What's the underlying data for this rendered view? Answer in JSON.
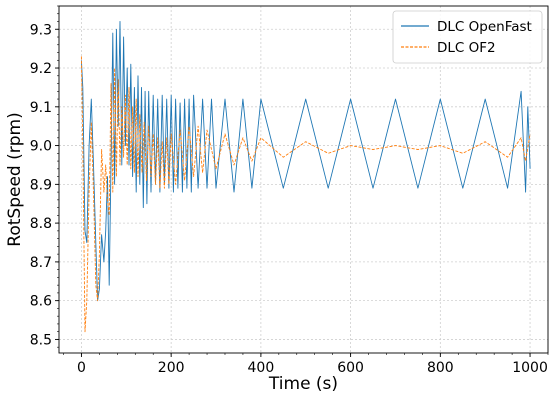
{
  "chart_data": {
    "type": "line",
    "xlabel": "Time (s)",
    "ylabel": "RotSpeed (rpm)",
    "xlim": [
      -50,
      1040
    ],
    "ylim": [
      8.465,
      9.36
    ],
    "xticks": [
      0,
      200,
      400,
      600,
      800,
      1000
    ],
    "yticks": [
      8.5,
      8.6,
      8.7,
      8.8,
      8.9,
      9.0,
      9.1,
      9.2,
      9.3
    ],
    "grid": true,
    "legend_position": "top-right",
    "series": [
      {
        "name": "DLC OpenFast",
        "color": "#1f77b4",
        "style": "solid",
        "x": [
          0,
          3,
          8,
          12,
          17,
          22,
          27,
          32,
          36,
          40,
          45,
          50,
          54,
          58,
          62,
          66,
          70,
          74,
          78,
          82,
          86,
          90,
          94,
          98,
          102,
          106,
          110,
          114,
          118,
          122,
          126,
          130,
          134,
          138,
          142,
          146,
          150,
          155,
          160,
          165,
          170,
          175,
          180,
          185,
          190,
          195,
          200,
          205,
          210,
          215,
          220,
          225,
          230,
          235,
          240,
          245,
          250,
          260,
          270,
          280,
          290,
          300,
          320,
          340,
          360,
          380,
          400,
          450,
          500,
          550,
          600,
          650,
          700,
          750,
          800,
          850,
          900,
          950,
          980,
          990,
          995,
          1000
        ],
        "y": [
          9.22,
          9.15,
          8.78,
          8.75,
          9.0,
          9.12,
          8.95,
          8.75,
          8.6,
          8.63,
          8.77,
          8.7,
          8.78,
          8.92,
          8.64,
          8.95,
          9.29,
          8.9,
          9.3,
          9.05,
          9.32,
          8.95,
          9.28,
          9.0,
          9.2,
          8.95,
          9.21,
          8.92,
          9.15,
          8.88,
          9.18,
          8.9,
          9.15,
          8.84,
          9.14,
          8.85,
          9.14,
          8.88,
          9.13,
          8.9,
          9.12,
          8.88,
          9.13,
          8.9,
          9.12,
          8.89,
          9.13,
          8.88,
          9.12,
          8.89,
          9.11,
          8.88,
          9.12,
          8.89,
          9.12,
          8.88,
          9.13,
          8.89,
          9.12,
          8.89,
          9.12,
          8.89,
          9.12,
          8.88,
          9.12,
          8.89,
          9.12,
          8.89,
          9.12,
          8.89,
          9.12,
          8.89,
          9.12,
          8.89,
          9.12,
          8.89,
          9.12,
          8.89,
          9.14,
          8.88,
          9.1,
          8.94
        ]
      },
      {
        "name": "DLC OF2",
        "color": "#ff7f0e",
        "style": "dashed",
        "x": [
          0,
          3,
          8,
          12,
          17,
          22,
          27,
          32,
          36,
          40,
          45,
          50,
          54,
          58,
          62,
          66,
          70,
          74,
          78,
          82,
          86,
          90,
          94,
          98,
          102,
          106,
          110,
          114,
          118,
          122,
          126,
          130,
          135,
          140,
          145,
          150,
          155,
          160,
          165,
          170,
          175,
          180,
          185,
          190,
          195,
          200,
          210,
          220,
          230,
          240,
          250,
          260,
          270,
          280,
          300,
          320,
          340,
          360,
          380,
          400,
          450,
          500,
          550,
          600,
          650,
          700,
          750,
          800,
          850,
          900,
          950,
          980,
          990,
          1000
        ],
        "y": [
          9.23,
          9.0,
          8.52,
          8.6,
          8.88,
          9.06,
          8.88,
          8.64,
          8.6,
          8.72,
          8.99,
          8.88,
          8.95,
          8.86,
          8.82,
          9.16,
          8.88,
          9.2,
          8.92,
          9.17,
          8.95,
          9.1,
          8.97,
          9.13,
          8.95,
          9.15,
          8.94,
          9.1,
          8.93,
          9.12,
          8.92,
          9.08,
          8.93,
          9.06,
          8.91,
          9.05,
          8.92,
          9.03,
          8.9,
          9.02,
          8.89,
          9.01,
          8.89,
          9.02,
          8.9,
          9.03,
          8.9,
          9.04,
          8.91,
          9.05,
          8.92,
          9.05,
          8.93,
          9.04,
          8.94,
          9.03,
          8.95,
          9.02,
          8.96,
          9.02,
          8.97,
          9.01,
          8.98,
          9.0,
          8.99,
          9.0,
          8.99,
          9.0,
          8.98,
          9.01,
          8.97,
          9.02,
          8.96,
          9.03
        ]
      }
    ]
  }
}
